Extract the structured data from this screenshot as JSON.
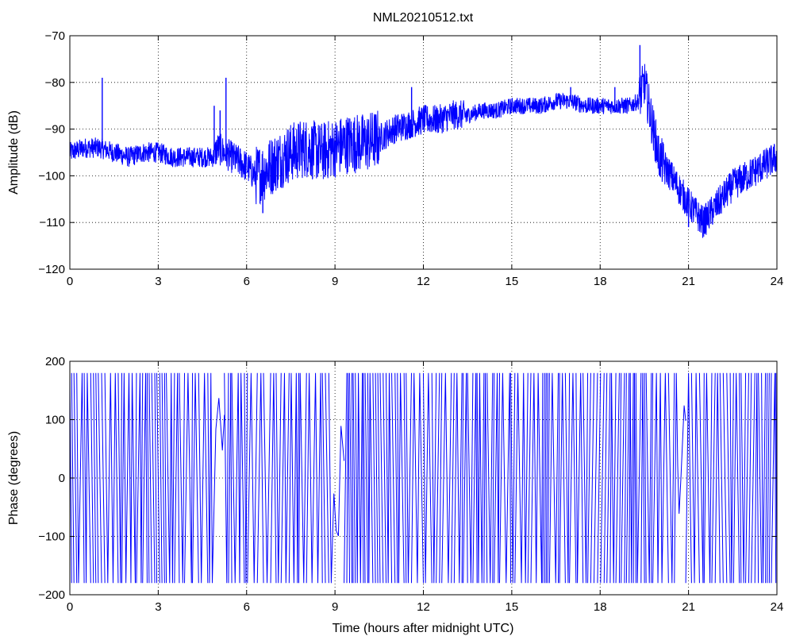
{
  "figure": {
    "title": "NML20210512.txt"
  },
  "chart_data": [
    {
      "type": "line",
      "name": "amplitude-panel",
      "title": "NML20210512.txt",
      "xlabel": "",
      "ylabel": "Amplitude (dB)",
      "xlim": [
        0,
        24
      ],
      "ylim": [
        -120,
        -70
      ],
      "xticks": [
        0,
        3,
        6,
        9,
        12,
        15,
        18,
        21,
        24
      ],
      "yticks": [
        -120,
        -110,
        -100,
        -90,
        -80,
        -70
      ],
      "xtick_labels": [
        "0",
        "3",
        "6",
        "9",
        "12",
        "15",
        "18",
        "21",
        "24"
      ],
      "ytick_labels": [
        "−120",
        "−110",
        "−100",
        "−90",
        "−80",
        "−70"
      ],
      "grid": true,
      "line_color": "#0000ff",
      "series": [
        {
          "x": [
            0,
            0.5,
            1.0,
            1.5,
            2.0,
            2.5,
            3.0,
            3.5,
            4.0,
            4.5,
            4.9,
            5.0,
            5.5,
            6.0,
            6.3,
            6.6,
            7.0,
            7.5,
            8.0,
            8.5,
            9.0,
            9.5,
            10.0,
            10.5,
            11.0,
            11.5,
            12.0,
            12.5,
            13.0,
            13.5,
            14.0,
            14.5,
            15.0,
            15.5,
            16.0,
            16.5,
            17.0,
            17.5,
            18.0,
            18.5,
            19.0,
            19.3,
            19.5,
            19.8,
            20.0,
            20.5,
            21.0,
            21.5,
            22.0,
            22.5,
            23.0,
            23.5,
            24.0
          ],
          "y": [
            -95,
            -94,
            -94,
            -95,
            -96,
            -95,
            -95,
            -96,
            -96,
            -96,
            -96,
            -94,
            -96,
            -98,
            -100,
            -99,
            -97,
            -95,
            -94,
            -95,
            -94,
            -93,
            -93,
            -92,
            -90,
            -89,
            -88,
            -88,
            -87,
            -87,
            -86,
            -86,
            -85,
            -85,
            -85,
            -84,
            -84,
            -85,
            -85,
            -85,
            -85,
            -84,
            -80,
            -90,
            -96,
            -101,
            -106,
            -110,
            -106,
            -102,
            -100,
            -98,
            -96
          ]
        }
      ],
      "spikes": [
        {
          "x": 1.1,
          "y": -79
        },
        {
          "x": 5.3,
          "y": -79
        },
        {
          "x": 4.9,
          "y": -85
        },
        {
          "x": 5.1,
          "y": -86
        },
        {
          "x": 6.55,
          "y": -108
        },
        {
          "x": 11.6,
          "y": -81
        },
        {
          "x": 17.0,
          "y": -81
        },
        {
          "x": 18.5,
          "y": -81
        },
        {
          "x": 19.35,
          "y": -72
        },
        {
          "x": 21.0,
          "y": -111
        }
      ]
    },
    {
      "type": "line",
      "name": "phase-panel",
      "title": "",
      "xlabel": "Time (hours after midnight UTC)",
      "ylabel": "Phase (degrees)",
      "xlim": [
        0,
        24
      ],
      "ylim": [
        -200,
        200
      ],
      "xticks": [
        0,
        3,
        6,
        9,
        12,
        15,
        18,
        21,
        24
      ],
      "yticks": [
        -200,
        -100,
        0,
        100,
        200
      ],
      "xtick_labels": [
        "0",
        "3",
        "6",
        "9",
        "12",
        "15",
        "18",
        "21",
        "24"
      ],
      "ytick_labels": [
        "−200",
        "−100",
        "0",
        "100",
        "200"
      ],
      "grid": true,
      "line_color": "#0000ff",
      "wrap_range": [
        -180,
        180
      ],
      "gaps": [
        {
          "x0": 4.9,
          "x1": 5.2
        },
        {
          "x0": 8.9,
          "x1": 9.3
        },
        {
          "x0": 20.6,
          "x1": 20.9
        }
      ]
    }
  ]
}
